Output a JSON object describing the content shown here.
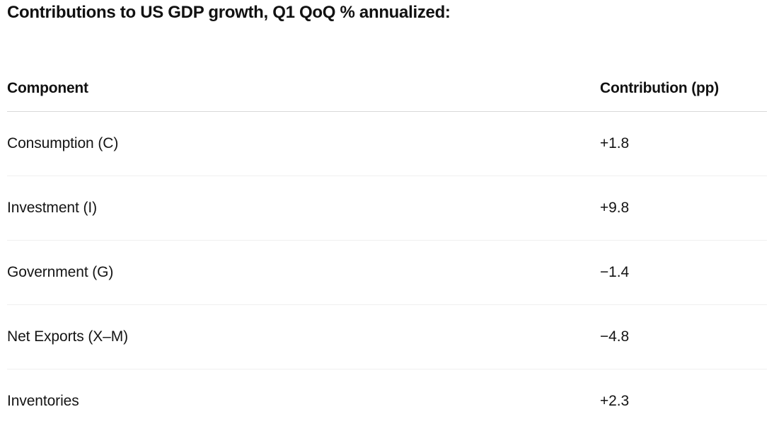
{
  "title": "Contributions to US GDP growth, Q1 QoQ % annualized:",
  "table": {
    "columns": {
      "component": "Component",
      "contribution": "Contribution (pp)"
    },
    "rows": [
      {
        "component": "Consumption (C)",
        "contribution": "+1.8"
      },
      {
        "component": "Investment (I)",
        "contribution": "+9.8"
      },
      {
        "component": "Government (G)",
        "contribution": "−1.4"
      },
      {
        "component": "Net Exports (X–M)",
        "contribution": "−4.8"
      },
      {
        "component": "Inventories",
        "contribution": "+2.3"
      }
    ]
  },
  "colors": {
    "text": "#141414",
    "heading": "#111111",
    "header_rule": "#d8d8d8",
    "row_rule": "#f0f0f0",
    "background": "#ffffff"
  }
}
